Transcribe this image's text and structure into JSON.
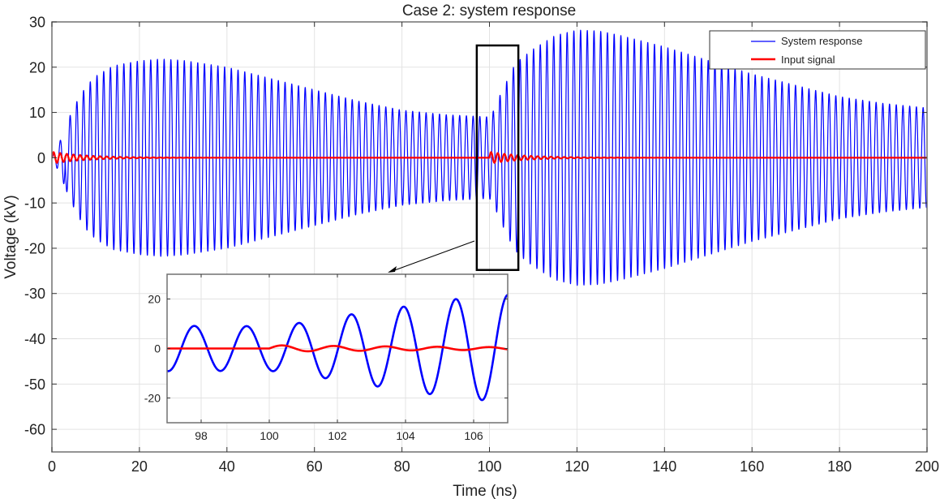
{
  "chart_data": {
    "type": "line",
    "title": "Case 2: system response",
    "xlabel": "Time (ns)",
    "ylabel": "Voltage (kV)",
    "xlim": [
      0,
      200
    ],
    "ylim": [
      -65,
      30
    ],
    "xticks": [
      0,
      20,
      40,
      60,
      80,
      100,
      120,
      140,
      160,
      180,
      200
    ],
    "yticks": [
      -60,
      -50,
      -40,
      -30,
      -20,
      -10,
      0,
      10,
      20,
      30
    ],
    "grid": true,
    "legend": {
      "placement": "top-right",
      "entries": [
        "System response",
        "Input signal"
      ]
    },
    "series": [
      {
        "name": "System response",
        "color": "#0000ff",
        "form": "oscillation",
        "period_ns": 1.535,
        "phase_ref_peak_ns": 97.8,
        "envelope": [
          [
            0,
            0
          ],
          [
            2,
            4
          ],
          [
            4,
            9
          ],
          [
            6,
            13
          ],
          [
            8,
            16
          ],
          [
            10,
            18
          ],
          [
            14,
            20.3
          ],
          [
            20,
            21.4
          ],
          [
            25,
            21.8
          ],
          [
            30,
            21.5
          ],
          [
            40,
            20
          ],
          [
            50,
            17.5
          ],
          [
            60,
            15
          ],
          [
            70,
            12.5
          ],
          [
            80,
            10.5
          ],
          [
            90,
            9.5
          ],
          [
            100,
            9
          ],
          [
            101,
            10.5
          ],
          [
            102.5,
            14
          ],
          [
            104,
            17
          ],
          [
            105.5,
            20
          ],
          [
            107,
            21.7
          ],
          [
            110,
            24
          ],
          [
            115,
            27
          ],
          [
            120,
            28.2
          ],
          [
            125,
            28
          ],
          [
            130,
            27
          ],
          [
            140,
            24.5
          ],
          [
            150,
            21.5
          ],
          [
            160,
            18.5
          ],
          [
            170,
            16
          ],
          [
            180,
            13.5
          ],
          [
            190,
            12
          ],
          [
            200,
            11
          ]
        ]
      },
      {
        "name": "Input signal",
        "color": "#ff0000",
        "form": "decaying-oscillation-bursts",
        "period_ns": 1.52,
        "burst_starts_ns": [
          0,
          100
        ],
        "amplitude_kV": 1.3,
        "decay_ns": 8
      }
    ],
    "zoom_box": {
      "xrange": [
        97.1,
        106.6
      ],
      "yrange": [
        -24.8,
        24.8
      ]
    },
    "inset": {
      "xlim": [
        97,
        107
      ],
      "ylim": [
        -30,
        30
      ],
      "xticks": [
        98,
        100,
        102,
        104,
        106
      ],
      "yticks": [
        -20,
        0,
        20
      ],
      "grid": true
    }
  }
}
